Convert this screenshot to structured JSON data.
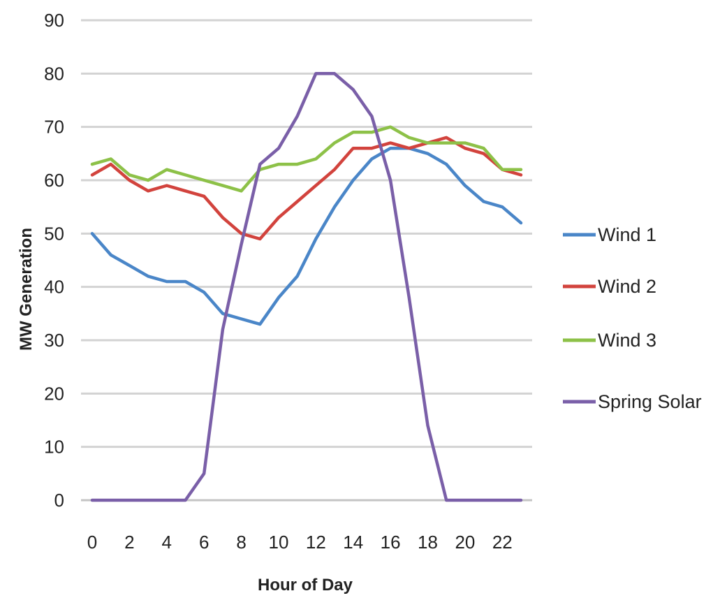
{
  "chart_data": {
    "type": "line",
    "title": "",
    "xlabel": "Hour of Day",
    "ylabel": "MW Generation",
    "xlim": [
      0,
      23
    ],
    "ylim": [
      0,
      90
    ],
    "x_ticks": [
      0,
      2,
      4,
      6,
      8,
      10,
      12,
      14,
      16,
      18,
      20,
      22
    ],
    "y_ticks": [
      0,
      10,
      20,
      30,
      40,
      50,
      60,
      70,
      80,
      90
    ],
    "grid": "horizontal",
    "legend_position": "right",
    "x": [
      0,
      1,
      2,
      3,
      4,
      5,
      6,
      7,
      8,
      9,
      10,
      11,
      12,
      13,
      14,
      15,
      16,
      17,
      18,
      19,
      20,
      21,
      22,
      23
    ],
    "series": [
      {
        "name": "Wind 1",
        "color": "#4a86c8",
        "values": [
          50,
          46,
          44,
          42,
          41,
          41,
          39,
          35,
          34,
          33,
          38,
          42,
          49,
          55,
          60,
          64,
          66,
          66,
          65,
          63,
          59,
          56,
          55,
          52
        ]
      },
      {
        "name": "Wind 2",
        "color": "#d2433d",
        "values": [
          61,
          63,
          60,
          58,
          59,
          58,
          57,
          53,
          50,
          49,
          53,
          56,
          59,
          62,
          66,
          66,
          67,
          66,
          67,
          68,
          66,
          65,
          62,
          61
        ]
      },
      {
        "name": "Wind 3",
        "color": "#8dc148",
        "values": [
          63,
          64,
          61,
          60,
          62,
          61,
          60,
          59,
          58,
          62,
          63,
          63,
          64,
          67,
          69,
          69,
          70,
          68,
          67,
          67,
          67,
          66,
          62,
          62
        ]
      },
      {
        "name": "Spring Solar",
        "color": "#7a5fa8",
        "values": [
          0,
          0,
          0,
          0,
          0,
          0,
          5,
          32,
          48,
          63,
          66,
          72,
          80,
          80,
          77,
          72,
          60,
          38,
          14,
          0,
          0,
          0,
          0,
          0
        ]
      }
    ]
  }
}
